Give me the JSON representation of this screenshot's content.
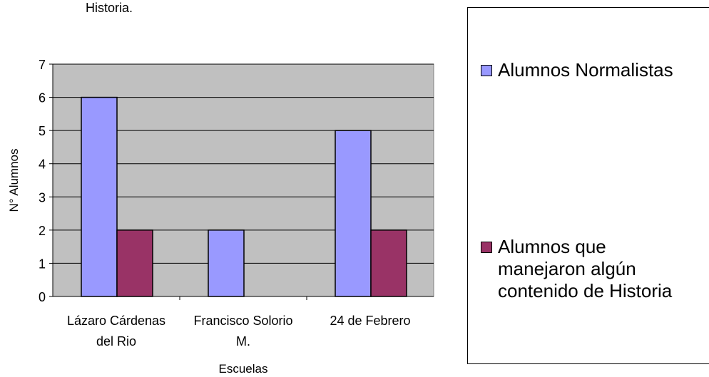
{
  "top_text": "Historia.",
  "legend": {
    "items": [
      {
        "label": "Alumnos Normalistas",
        "color": "#9999FF"
      },
      {
        "label": "Alumnos que\nmanejaron algún\ncontenido de Historia",
        "color": "#993366"
      }
    ]
  },
  "chart_data": {
    "type": "bar",
    "title": "",
    "xlabel": "Escuelas",
    "ylabel": "N° Alumnos",
    "ylim": [
      0,
      7
    ],
    "yticks": [
      0,
      1,
      2,
      3,
      4,
      5,
      6,
      7
    ],
    "categories": [
      "Lázaro Cárdenas\ndel Rio",
      "Francisco Solorio\nM.",
      "24 de Febrero"
    ],
    "series": [
      {
        "name": "Alumnos Normalistas",
        "values": [
          6,
          2,
          5
        ],
        "color": "#9999FF"
      },
      {
        "name": "Alumnos que manejaron algún contenido de Historia",
        "values": [
          2,
          0,
          2
        ],
        "color": "#993366"
      }
    ],
    "plot_background": "#C0C0C0",
    "grid": true,
    "legend_position": "right"
  }
}
